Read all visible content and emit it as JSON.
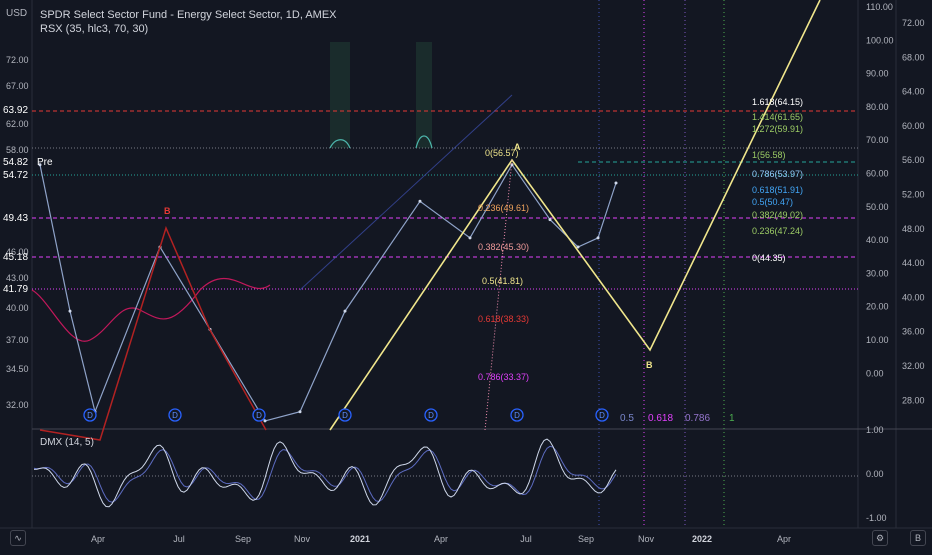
{
  "header": {
    "title": "SPDR Select Sector Fund - Energy Select Sector, 1D, AMEX",
    "indicator": "RSX (35, hlc3, 70, 30)",
    "currency": "USD"
  },
  "lower_indicator": {
    "label": "DMX (14, 5)"
  },
  "colors": {
    "background": "#131722",
    "fib_yellow": "#f0e68c",
    "red_wave": "#b22222",
    "magenta": "#e040fb",
    "price_line": "#b2b5be"
  },
  "price_tags": [
    {
      "text": "63.92",
      "color": "#e53935"
    },
    {
      "text": "54.82",
      "color": "#f57c00"
    },
    {
      "text": "Pre",
      "color": "#f57c00"
    },
    {
      "text": "54.72",
      "color": "#26a69a"
    },
    {
      "text": "49.43",
      "color": "#e040fb"
    },
    {
      "text": "45.18",
      "color": "#e040fb"
    },
    {
      "text": "41.79",
      "color": "#e040fb"
    }
  ],
  "left_axis": [
    "72.00",
    "67.00",
    "62.00",
    "58.00",
    "46.00",
    "43.00",
    "40.00",
    "37.00",
    "34.50",
    "32.00"
  ],
  "right_axis_price": [
    "72.00",
    "68.00",
    "64.00",
    "60.00",
    "56.00",
    "52.00",
    "48.00",
    "44.00",
    "40.00",
    "36.00",
    "32.00",
    "28.00"
  ],
  "right_axis_rsx": [
    "110.00",
    "100.00",
    "90.00",
    "80.00",
    "70.00",
    "60.00",
    "50.00",
    "40.00",
    "30.00",
    "20.00",
    "10.00",
    "0.00"
  ],
  "lower_axis": [
    "1.00",
    "0.00",
    "-1.00"
  ],
  "time_axis": [
    "Apr",
    "Jul",
    "Sep",
    "Nov",
    "2021",
    "Apr",
    "Jul",
    "Sep",
    "Nov",
    "2022",
    "Apr"
  ],
  "fib_retracement": [
    "0(56.57)",
    "0.236(49.61)",
    "0.382(45.30)",
    "0.5(41.81)",
    "0.618(38.33)",
    "0.786(33.37)"
  ],
  "fib_extension": [
    "1.618(64.15)",
    "1.414(61.65)",
    "1.272(59.91)",
    "1(56.58)",
    "0.786(53.97)",
    "0.618(51.91)",
    "0.5(50.47)",
    "0.382(49.02)",
    "0.236(47.24)",
    "0(44.35)"
  ],
  "time_fib": [
    "0.5",
    "0.618",
    "0.786",
    "1"
  ],
  "wave_labels": [
    "B",
    "A",
    "B"
  ],
  "dividend_marker": "D",
  "chart_data": {
    "type": "line",
    "title": "SPDR Select Sector Fund - Energy Select Sector, 1D, AMEX",
    "xlabel": "",
    "ylabel": "",
    "x": [
      "2020-02",
      "2020-03",
      "2020-04",
      "2020-06",
      "2020-08",
      "2020-10",
      "2020-11",
      "2021-01",
      "2021-03",
      "2021-04",
      "2021-06",
      "2021-07",
      "2021-08",
      "2021-09",
      "2021-10"
    ],
    "series": [
      {
        "name": "",
        "values": [
          56,
          40,
          29,
          47,
          38,
          28,
          29,
          40,
          52,
          48,
          56,
          50,
          47,
          48,
          54
        ]
      }
    ],
    "ylim": [
      27,
      74
    ]
  }
}
